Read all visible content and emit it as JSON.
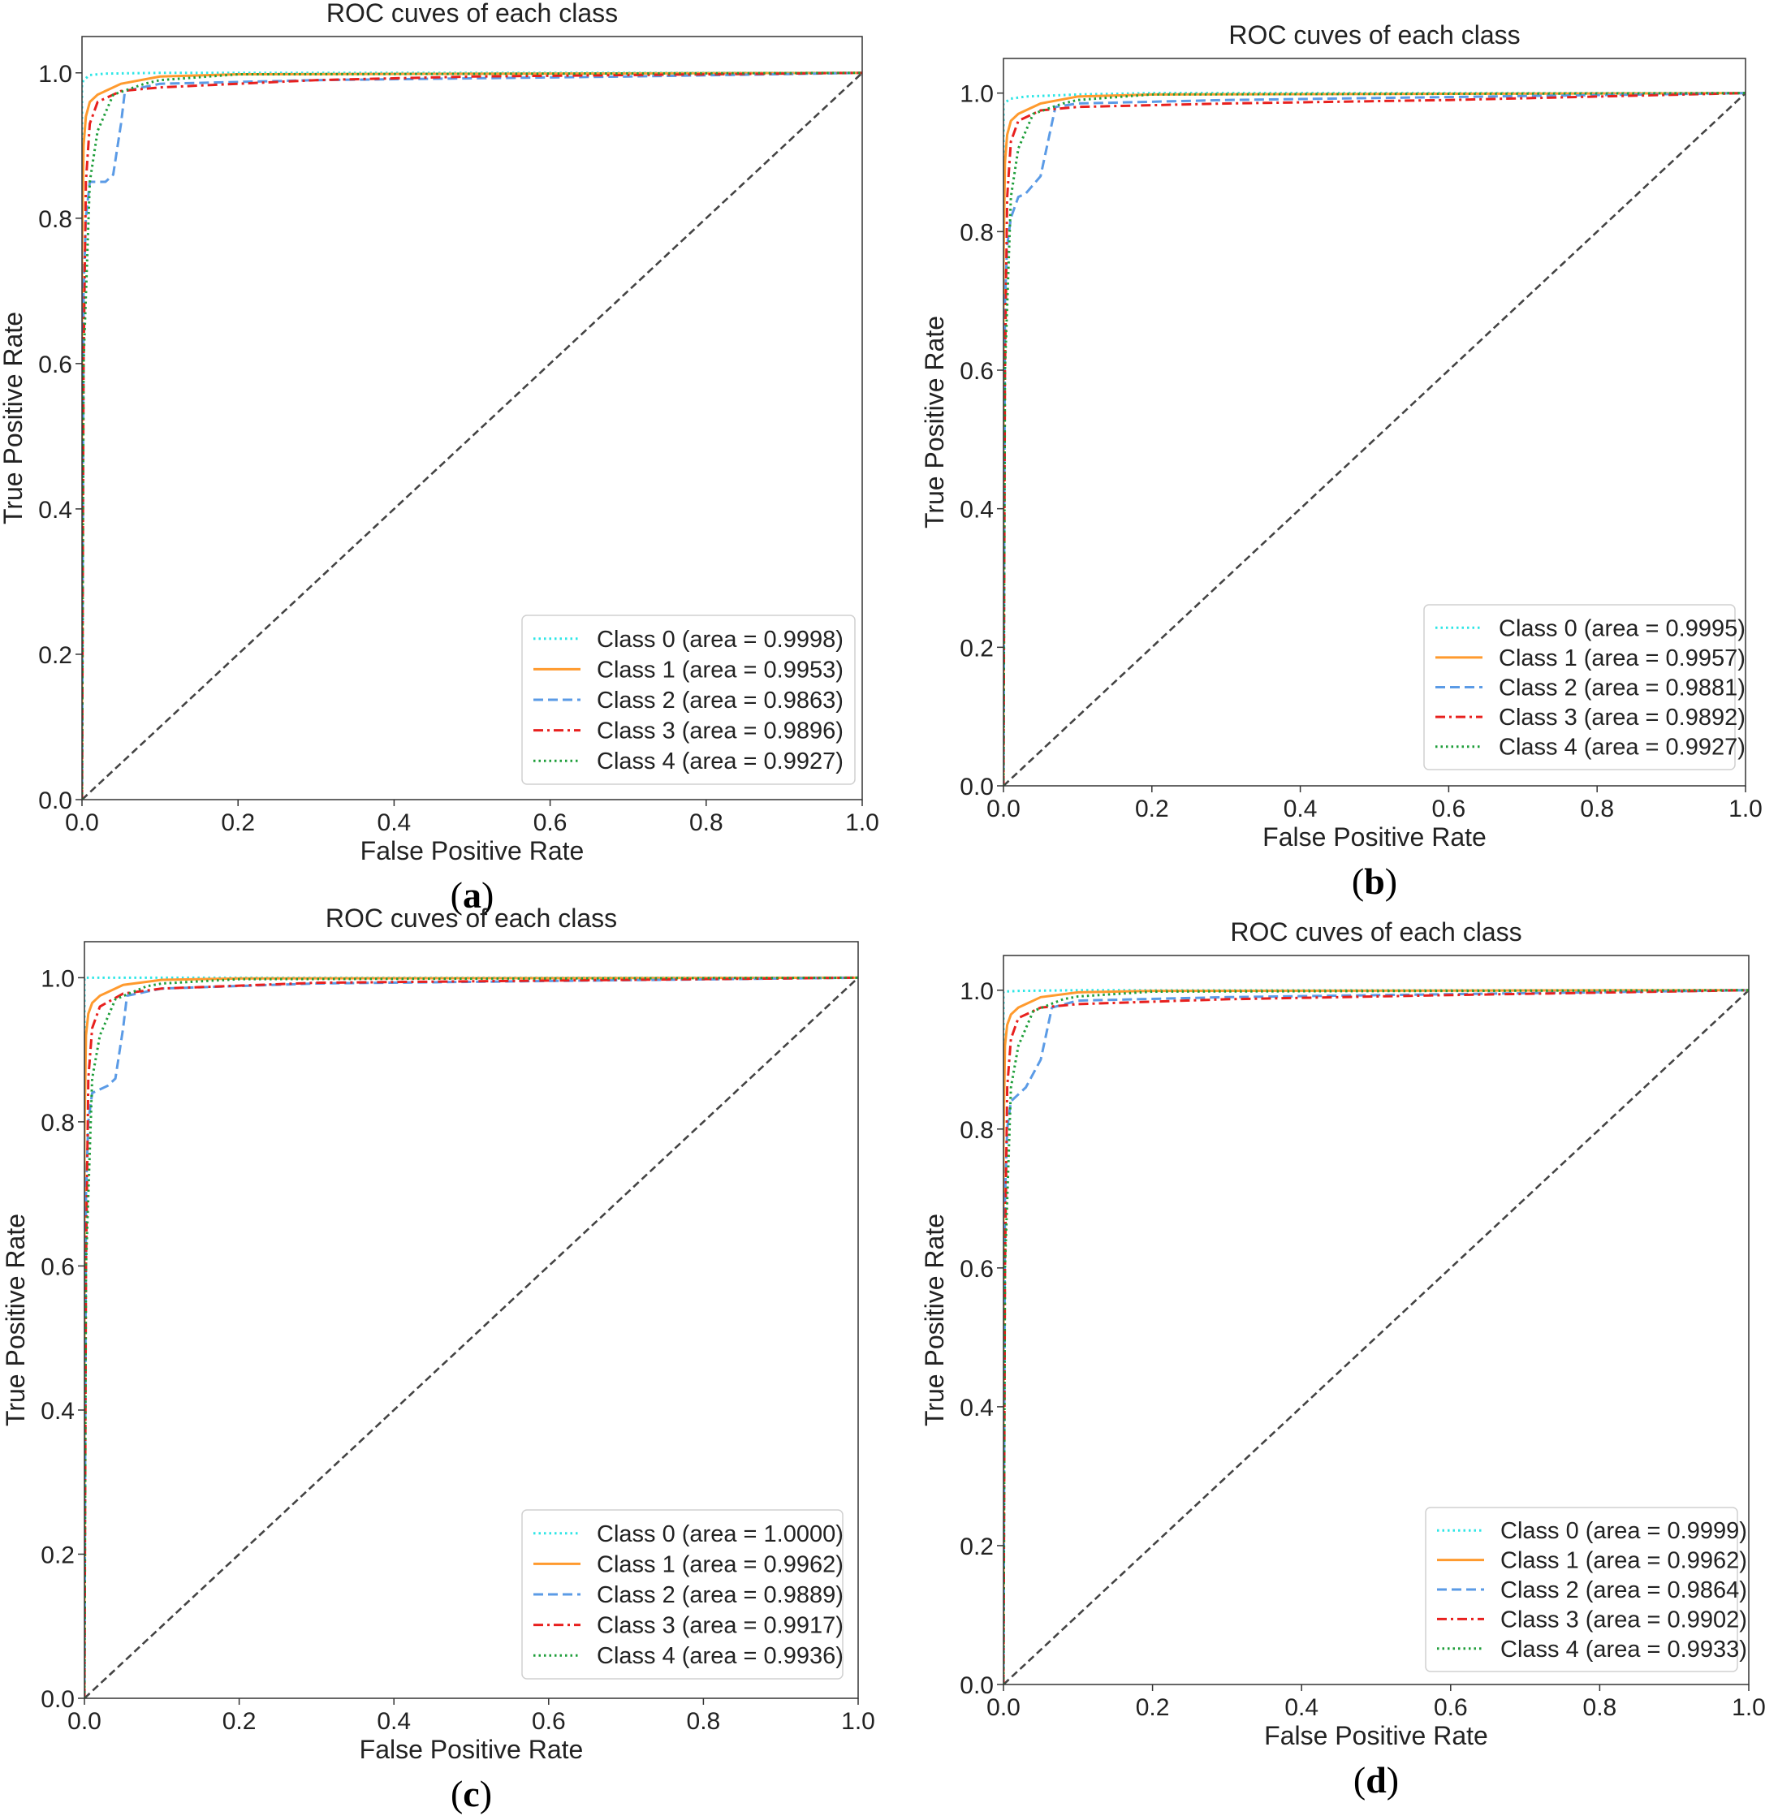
{
  "figure": {
    "panel_count": 4
  },
  "colors": {
    "class0": "#2EE6E6",
    "class1": "#FF9A2E",
    "class2": "#5B9BE6",
    "class3": "#E8201E",
    "class4": "#1E9E3A",
    "diagonal": "#444444",
    "frame": "#333333"
  },
  "chart_data": [
    {
      "panel": "a",
      "type": "line",
      "title": "ROC cuves of each class",
      "xlabel": "False Positive Rate",
      "ylabel": "True Positive Rate",
      "xlim": [
        0.0,
        1.0
      ],
      "ylim": [
        0.0,
        1.05
      ],
      "xticks": [
        "0.0",
        "0.2",
        "0.4",
        "0.6",
        "0.8",
        "1.0"
      ],
      "yticks": [
        "0.0",
        "0.2",
        "0.4",
        "0.6",
        "0.8",
        "1.0"
      ],
      "legend_position": "bottom-right",
      "caption": {
        "open": "(",
        "letter": "a",
        "close": ")"
      },
      "series": [
        {
          "name": "Class 0 (area = 0.9998)",
          "style": "dotted",
          "color": "class0",
          "x": [
            0,
            0,
            0.002,
            0.01,
            0.03,
            0.1,
            1.0
          ],
          "y": [
            0,
            0.985,
            0.99,
            0.997,
            0.999,
            1.0,
            1.0
          ]
        },
        {
          "name": "Class 1 (area = 0.9953)",
          "style": "solid",
          "color": "class1",
          "x": [
            0,
            0,
            0.002,
            0.005,
            0.01,
            0.02,
            0.05,
            0.1,
            0.2,
            1.0
          ],
          "y": [
            0,
            0.75,
            0.9,
            0.94,
            0.96,
            0.97,
            0.985,
            0.995,
            0.998,
            1.0
          ]
        },
        {
          "name": "Class 2 (area = 0.9863)",
          "style": "dashed",
          "color": "class2",
          "x": [
            0,
            0.002,
            0.005,
            0.01,
            0.03,
            0.04,
            0.05,
            0.055,
            0.1,
            0.3,
            0.7,
            1.0
          ],
          "y": [
            0,
            0.7,
            0.8,
            0.85,
            0.85,
            0.86,
            0.93,
            0.975,
            0.985,
            0.99,
            0.995,
            1.0
          ]
        },
        {
          "name": "Class 3 (area = 0.9896)",
          "style": "dashdot",
          "color": "class3",
          "x": [
            0,
            0.002,
            0.005,
            0.01,
            0.02,
            0.05,
            0.1,
            0.3,
            0.5,
            1.0
          ],
          "y": [
            0,
            0.6,
            0.85,
            0.93,
            0.96,
            0.975,
            0.98,
            0.99,
            0.995,
            1.0
          ]
        },
        {
          "name": "Class 4 (area = 0.9927)",
          "style": "dotted",
          "color": "class4",
          "x": [
            0,
            0.002,
            0.01,
            0.02,
            0.04,
            0.08,
            0.1,
            0.2,
            1.0
          ],
          "y": [
            0,
            0.6,
            0.85,
            0.92,
            0.97,
            0.985,
            0.99,
            0.998,
            1.0
          ]
        },
        {
          "name": "",
          "style": "diagonal",
          "color": "diagonal",
          "x": [
            0,
            1
          ],
          "y": [
            0,
            1
          ]
        }
      ]
    },
    {
      "panel": "b",
      "type": "line",
      "title": "ROC cuves of each class",
      "xlabel": "False Positive Rate",
      "ylabel": "True Positive Rate",
      "xlim": [
        0.0,
        1.0
      ],
      "ylim": [
        0.0,
        1.05
      ],
      "xticks": [
        "0.0",
        "0.2",
        "0.4",
        "0.6",
        "0.8",
        "1.0"
      ],
      "yticks": [
        "0.0",
        "0.2",
        "0.4",
        "0.6",
        "0.8",
        "1.0"
      ],
      "legend_position": "bottom-right",
      "caption": {
        "open": "(",
        "letter": "b",
        "close": ")"
      },
      "series": [
        {
          "name": "Class 0 (area = 0.9995)",
          "style": "dotted",
          "color": "class0",
          "x": [
            0,
            0,
            0.01,
            0.03,
            0.1,
            0.2,
            1.0
          ],
          "y": [
            0,
            0.985,
            0.992,
            0.995,
            0.998,
            1.0,
            1.0
          ]
        },
        {
          "name": "Class 1 (area = 0.9957)",
          "style": "solid",
          "color": "class1",
          "x": [
            0,
            0,
            0.002,
            0.005,
            0.01,
            0.02,
            0.05,
            0.1,
            0.2,
            1.0
          ],
          "y": [
            0,
            0.75,
            0.9,
            0.94,
            0.96,
            0.97,
            0.985,
            0.995,
            0.998,
            1.0
          ]
        },
        {
          "name": "Class 2 (area = 0.9881)",
          "style": "dashed",
          "color": "class2",
          "x": [
            0,
            0.002,
            0.005,
            0.01,
            0.02,
            0.03,
            0.05,
            0.07,
            0.1,
            0.3,
            1.0
          ],
          "y": [
            0,
            0.7,
            0.78,
            0.82,
            0.85,
            0.855,
            0.88,
            0.98,
            0.985,
            0.99,
            1.0
          ]
        },
        {
          "name": "Class 3 (area = 0.9892)",
          "style": "dashdot",
          "color": "class3",
          "x": [
            0,
            0.002,
            0.005,
            0.01,
            0.02,
            0.05,
            0.1,
            0.3,
            0.6,
            1.0
          ],
          "y": [
            0,
            0.6,
            0.85,
            0.93,
            0.96,
            0.975,
            0.98,
            0.985,
            0.99,
            1.0
          ]
        },
        {
          "name": "Class 4 (area = 0.9927)",
          "style": "dotted",
          "color": "class4",
          "x": [
            0,
            0.002,
            0.01,
            0.02,
            0.04,
            0.08,
            0.1,
            0.2,
            1.0
          ],
          "y": [
            0,
            0.6,
            0.85,
            0.92,
            0.97,
            0.985,
            0.99,
            0.998,
            1.0
          ]
        },
        {
          "name": "",
          "style": "diagonal",
          "color": "diagonal",
          "x": [
            0,
            1
          ],
          "y": [
            0,
            1
          ]
        }
      ]
    },
    {
      "panel": "c",
      "type": "line",
      "title": "ROC cuves of each class",
      "xlabel": "False Positive Rate",
      "ylabel": "True Positive Rate",
      "xlim": [
        0.0,
        1.0
      ],
      "ylim": [
        0.0,
        1.05
      ],
      "xticks": [
        "0.0",
        "0.2",
        "0.4",
        "0.6",
        "0.8",
        "1.0"
      ],
      "yticks": [
        "0.0",
        "0.2",
        "0.4",
        "0.6",
        "0.8",
        "1.0"
      ],
      "legend_position": "bottom-right",
      "caption": {
        "open": "(",
        "letter": "c",
        "close": ")"
      },
      "series": [
        {
          "name": "Class 0 (area = 1.0000)",
          "style": "dotted",
          "color": "class0",
          "x": [
            0,
            0,
            1.0
          ],
          "y": [
            0,
            1.0,
            1.0
          ]
        },
        {
          "name": "Class 1 (area = 0.9962)",
          "style": "solid",
          "color": "class1",
          "x": [
            0,
            0,
            0.002,
            0.005,
            0.01,
            0.02,
            0.05,
            0.1,
            0.2,
            1.0
          ],
          "y": [
            0,
            0.78,
            0.92,
            0.95,
            0.965,
            0.975,
            0.99,
            0.997,
            0.999,
            1.0
          ]
        },
        {
          "name": "Class 2 (area = 0.9889)",
          "style": "dashed",
          "color": "class2",
          "x": [
            0,
            0.002,
            0.005,
            0.01,
            0.03,
            0.04,
            0.05,
            0.055,
            0.1,
            0.3,
            1.0
          ],
          "y": [
            0,
            0.7,
            0.8,
            0.84,
            0.85,
            0.86,
            0.93,
            0.975,
            0.985,
            0.992,
            1.0
          ]
        },
        {
          "name": "Class 3 (area = 0.9917)",
          "style": "dashdot",
          "color": "class3",
          "x": [
            0,
            0.002,
            0.005,
            0.01,
            0.02,
            0.05,
            0.1,
            0.3,
            1.0
          ],
          "y": [
            0,
            0.6,
            0.86,
            0.93,
            0.96,
            0.978,
            0.985,
            0.993,
            1.0
          ]
        },
        {
          "name": "Class 4 (area = 0.9936)",
          "style": "dotted",
          "color": "class4",
          "x": [
            0,
            0.002,
            0.01,
            0.02,
            0.04,
            0.08,
            0.1,
            0.2,
            1.0
          ],
          "y": [
            0,
            0.6,
            0.86,
            0.92,
            0.97,
            0.988,
            0.992,
            0.998,
            1.0
          ]
        },
        {
          "name": "",
          "style": "diagonal",
          "color": "diagonal",
          "x": [
            0,
            1
          ],
          "y": [
            0,
            1
          ]
        }
      ]
    },
    {
      "panel": "d",
      "type": "line",
      "title": "ROC cuves of each class",
      "xlabel": "False Positive Rate",
      "ylabel": "True Positive Rate",
      "xlim": [
        0.0,
        1.0
      ],
      "ylim": [
        0.0,
        1.05
      ],
      "xticks": [
        "0.0",
        "0.2",
        "0.4",
        "0.6",
        "0.8",
        "1.0"
      ],
      "yticks": [
        "0.0",
        "0.2",
        "0.4",
        "0.6",
        "0.8",
        "1.0"
      ],
      "legend_position": "bottom-right",
      "caption": {
        "open": "(",
        "letter": "d",
        "close": ")"
      },
      "series": [
        {
          "name": "Class 0 (area = 0.9999)",
          "style": "dotted",
          "color": "class0",
          "x": [
            0,
            0,
            0.02,
            0.1,
            1.0
          ],
          "y": [
            0,
            0.998,
            0.999,
            1.0,
            1.0
          ]
        },
        {
          "name": "Class 1 (area = 0.9962)",
          "style": "solid",
          "color": "class1",
          "x": [
            0,
            0,
            0.002,
            0.005,
            0.01,
            0.02,
            0.05,
            0.1,
            0.2,
            1.0
          ],
          "y": [
            0,
            0.78,
            0.92,
            0.95,
            0.965,
            0.975,
            0.99,
            0.997,
            0.999,
            1.0
          ]
        },
        {
          "name": "Class 2 (area = 0.9864)",
          "style": "dashed",
          "color": "class2",
          "x": [
            0,
            0.002,
            0.005,
            0.01,
            0.02,
            0.03,
            0.05,
            0.065,
            0.1,
            0.3,
            1.0
          ],
          "y": [
            0,
            0.7,
            0.8,
            0.84,
            0.85,
            0.86,
            0.9,
            0.975,
            0.985,
            0.99,
            1.0
          ]
        },
        {
          "name": "Class 3 (area = 0.9902)",
          "style": "dashdot",
          "color": "class3",
          "x": [
            0,
            0.002,
            0.005,
            0.01,
            0.02,
            0.05,
            0.1,
            0.3,
            0.6,
            1.0
          ],
          "y": [
            0,
            0.6,
            0.86,
            0.93,
            0.96,
            0.975,
            0.98,
            0.987,
            0.993,
            1.0
          ]
        },
        {
          "name": "Class 4 (area = 0.9933)",
          "style": "dotted",
          "color": "class4",
          "x": [
            0,
            0.002,
            0.01,
            0.02,
            0.04,
            0.08,
            0.1,
            0.2,
            1.0
          ],
          "y": [
            0,
            0.6,
            0.86,
            0.92,
            0.97,
            0.987,
            0.991,
            0.998,
            1.0
          ]
        },
        {
          "name": "",
          "style": "diagonal",
          "color": "diagonal",
          "x": [
            0,
            1
          ],
          "y": [
            0,
            1
          ]
        }
      ]
    }
  ]
}
